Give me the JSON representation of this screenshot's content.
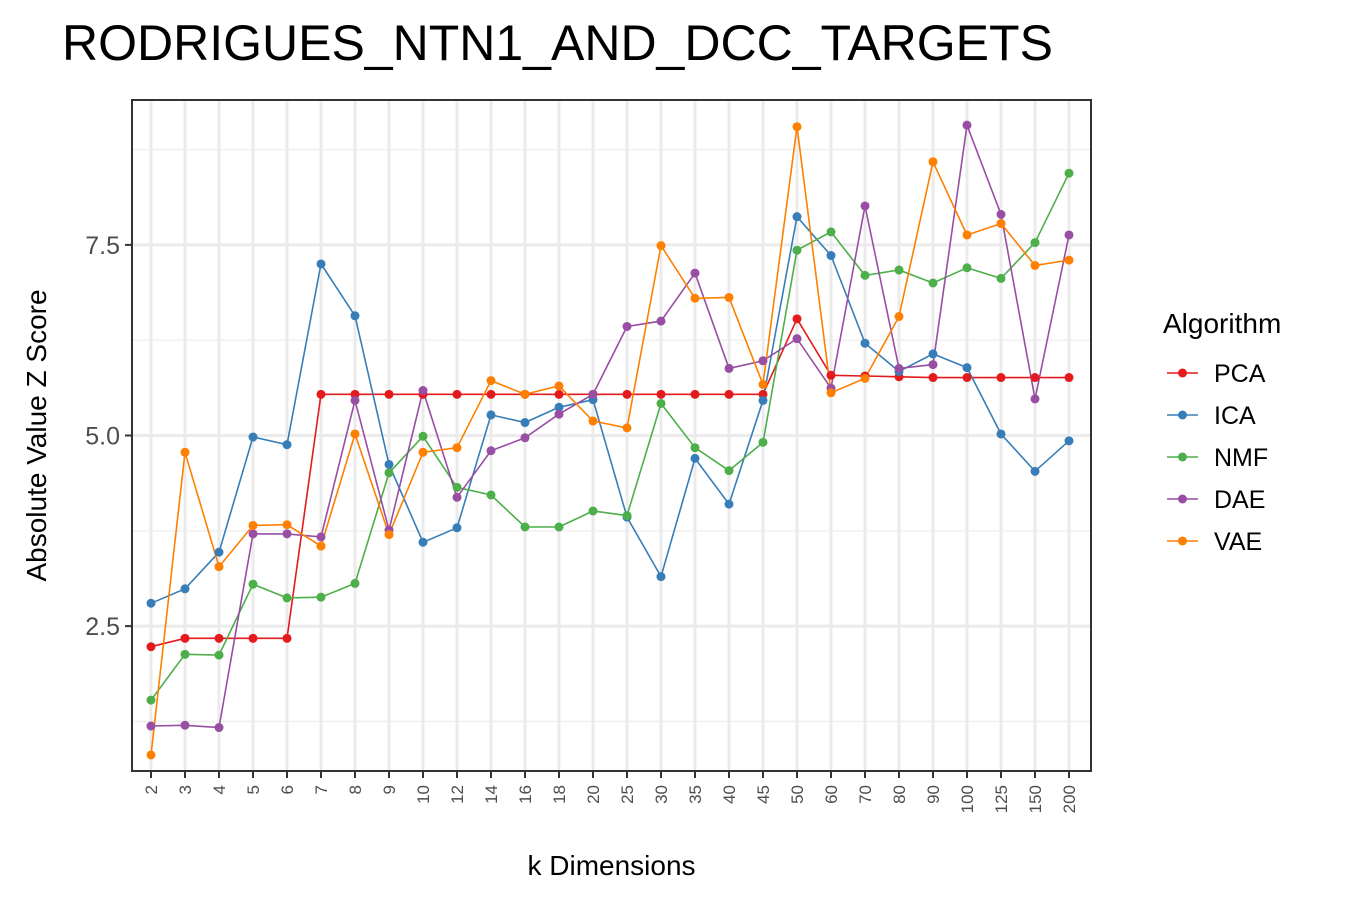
{
  "chart_data": {
    "type": "line",
    "title": "RODRIGUES_NTN1_AND_DCC_TARGETS",
    "xlabel": "k Dimensions",
    "ylabel": "Absolute Value Z Score",
    "categories": [
      "2",
      "3",
      "4",
      "5",
      "6",
      "7",
      "8",
      "9",
      "10",
      "12",
      "14",
      "16",
      "18",
      "20",
      "25",
      "30",
      "35",
      "40",
      "45",
      "50",
      "60",
      "70",
      "80",
      "90",
      "100",
      "125",
      "150",
      "200"
    ],
    "ylim": [
      0.6,
      9.4
    ],
    "yticks": [
      2.5,
      5.0,
      7.5
    ],
    "ytick_labels": [
      "2.5",
      "5.0",
      "7.5"
    ],
    "grid": true,
    "legend": {
      "title": "Algorithm",
      "position": "right"
    },
    "series": [
      {
        "name": "PCA",
        "color": "#e41a1c",
        "values": [
          2.23,
          2.34,
          2.34,
          2.34,
          2.34,
          5.54,
          5.54,
          5.54,
          5.54,
          5.54,
          5.54,
          5.54,
          5.54,
          5.54,
          5.54,
          5.54,
          5.54,
          5.54,
          5.54,
          6.53,
          5.79,
          5.78,
          5.77,
          5.76,
          5.76,
          5.76,
          5.76,
          5.76
        ]
      },
      {
        "name": "ICA",
        "color": "#377eb8",
        "values": [
          2.8,
          2.99,
          3.47,
          4.98,
          4.88,
          7.25,
          6.57,
          4.62,
          3.6,
          3.79,
          5.27,
          5.17,
          5.37,
          5.47,
          3.93,
          3.15,
          4.7,
          4.1,
          5.46,
          7.87,
          7.36,
          6.21,
          5.84,
          6.07,
          5.89,
          5.02,
          4.53,
          4.93
        ]
      },
      {
        "name": "NMF",
        "color": "#4daf4a",
        "values": [
          1.53,
          2.13,
          2.12,
          3.05,
          2.87,
          2.88,
          3.06,
          4.51,
          4.99,
          4.32,
          4.22,
          3.8,
          3.8,
          4.01,
          3.95,
          5.42,
          4.84,
          4.54,
          4.91,
          7.43,
          7.67,
          7.1,
          7.17,
          7.0,
          7.2,
          7.06,
          7.53,
          8.44
        ]
      },
      {
        "name": "DAE",
        "color": "#984ea3",
        "values": [
          1.19,
          1.2,
          1.17,
          3.71,
          3.71,
          3.67,
          5.46,
          3.76,
          5.59,
          4.19,
          4.8,
          4.97,
          5.28,
          5.54,
          6.43,
          6.5,
          7.13,
          5.88,
          5.98,
          6.27,
          5.62,
          8.01,
          5.88,
          5.93,
          9.07,
          7.9,
          5.48,
          7.63
        ]
      },
      {
        "name": "VAE",
        "color": "#ff7f00",
        "values": [
          0.81,
          4.78,
          3.28,
          3.82,
          3.83,
          3.55,
          5.02,
          3.7,
          4.78,
          4.84,
          5.72,
          5.54,
          5.65,
          5.19,
          5.1,
          7.49,
          6.8,
          6.81,
          5.67,
          9.05,
          5.56,
          5.75,
          6.56,
          8.59,
          7.63,
          7.78,
          7.23,
          7.3
        ]
      }
    ]
  }
}
